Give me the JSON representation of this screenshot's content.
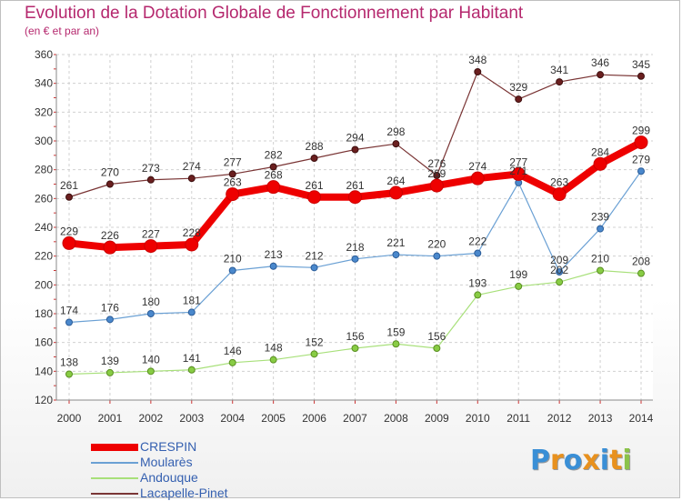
{
  "title": "Evolution de la Dotation Globale de Fonctionnement par Habitant",
  "subtitle": "(en € et par an)",
  "brand": {
    "letters": [
      "P",
      "r",
      "o",
      "x",
      "i",
      "t",
      "i"
    ],
    "colors": [
      "#3a8fd6",
      "#e8911e",
      "#3a8fd6",
      "#e8911e",
      "#3a8fd6",
      "#e8911e",
      "#8bc34a"
    ]
  },
  "chart_data": {
    "type": "line",
    "x": [
      "2000",
      "2001",
      "2002",
      "2003",
      "2004",
      "2005",
      "2006",
      "2007",
      "2008",
      "2009",
      "2010",
      "2011",
      "2012",
      "2013",
      "2014"
    ],
    "ylim": [
      120,
      360
    ],
    "yticks": [
      "120",
      "140",
      "160",
      "180",
      "200",
      "220",
      "240",
      "260",
      "280",
      "300",
      "320",
      "340",
      "360"
    ],
    "grid": true,
    "legend_position": "bottom-left",
    "series": [
      {
        "name": "CRESPIN",
        "color": "#ee0000",
        "values": [
          229,
          226,
          227,
          228,
          263,
          268,
          261,
          261,
          264,
          269,
          274,
          277,
          263,
          284,
          299
        ],
        "labels": [
          "229",
          "226",
          "227",
          "228",
          "263",
          "268",
          "261",
          "261",
          "264",
          "269",
          "274",
          "277",
          "263",
          "284",
          "299"
        ]
      },
      {
        "name": "Moularès",
        "color": "#6aa0d4",
        "values": [
          174,
          176,
          180,
          181,
          210,
          213,
          212,
          218,
          221,
          220,
          222,
          271,
          209,
          239,
          279
        ],
        "labels": [
          "174",
          "176",
          "180",
          "181",
          "210",
          "213",
          "212",
          "218",
          "221",
          "220",
          "222",
          "271",
          "209",
          "239",
          "279"
        ]
      },
      {
        "name": "Andouque",
        "color": "#a8e07a",
        "values": [
          138,
          139,
          140,
          141,
          146,
          148,
          152,
          156,
          159,
          156,
          193,
          199,
          202,
          210,
          208
        ],
        "labels": [
          "138",
          "139",
          "140",
          "141",
          "146",
          "148",
          "152",
          "156",
          "159",
          "156",
          "193",
          "199",
          "202",
          "210",
          "208"
        ]
      },
      {
        "name": "Lacapelle-Pinet",
        "color": "#7a3535",
        "values": [
          261,
          270,
          273,
          274,
          277,
          282,
          288,
          294,
          298,
          276,
          348,
          329,
          341,
          346,
          345
        ],
        "labels": [
          "261",
          "270",
          "273",
          "274",
          "277",
          "282",
          "288",
          "294",
          "298",
          "276",
          "348",
          "329",
          "341",
          "346",
          "345"
        ]
      }
    ]
  }
}
